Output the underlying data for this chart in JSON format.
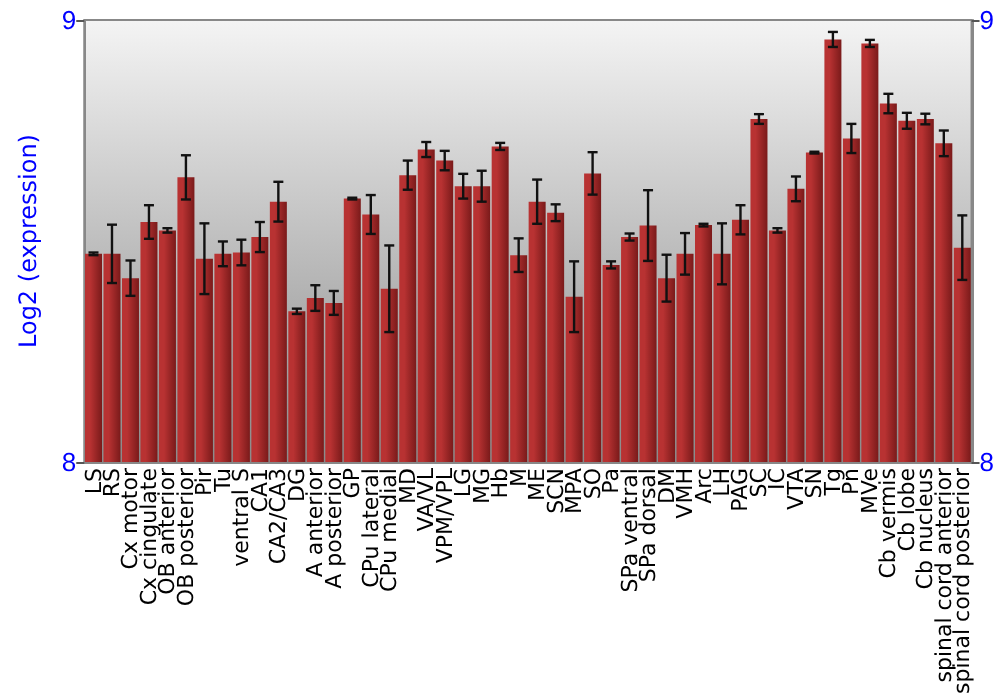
{
  "chart_data": {
    "type": "bar",
    "ylabel": "Log2 (expression)",
    "categories": [
      "LS",
      "RS",
      "Cx motor",
      "Cx cingulate",
      "OB anterior",
      "OB posterior",
      "Pir",
      "Tu",
      "ventral S",
      "CA1",
      "CA2/CA3",
      "DG",
      "A anterior",
      "A posterior",
      "GP",
      "CPu lateral",
      "CPu medial",
      "MD",
      "VA/VL",
      "VPM/VPL",
      "LG",
      "MG",
      "Hb",
      "M",
      "ME",
      "SCN",
      "MPA",
      "SO",
      "Pa",
      "SPa ventral",
      "SPa dorsal",
      "DM",
      "VMH",
      "Arc",
      "LH",
      "PAG",
      "SC",
      "IC",
      "VTA",
      "SN",
      "Tg",
      "Pn",
      "MVe",
      "Cb vermis",
      "Cb lobe",
      "Cb nucleus",
      "spinal cord anterior",
      "spinal cord posterior"
    ],
    "values": [
      8.471,
      8.471,
      8.416,
      8.543,
      8.524,
      8.644,
      8.46,
      8.471,
      8.474,
      8.509,
      8.589,
      8.341,
      8.371,
      8.36,
      8.596,
      8.56,
      8.392,
      8.649,
      8.707,
      8.682,
      8.624,
      8.624,
      8.714,
      8.468,
      8.589,
      8.564,
      8.374,
      8.653,
      8.446,
      8.509,
      8.535,
      8.416,
      8.471,
      8.536,
      8.471,
      8.548,
      8.776,
      8.524,
      8.618,
      8.7,
      8.956,
      8.732,
      8.947,
      8.811,
      8.772,
      8.776,
      8.721,
      8.485
    ],
    "errors": [
      0.003,
      0.066,
      0.04,
      0.038,
      0.005,
      0.05,
      0.08,
      0.028,
      0.029,
      0.034,
      0.045,
      0.006,
      0.029,
      0.027,
      0.002,
      0.044,
      0.098,
      0.033,
      0.017,
      0.022,
      0.028,
      0.035,
      0.008,
      0.038,
      0.05,
      0.019,
      0.08,
      0.048,
      0.008,
      0.008,
      0.08,
      0.053,
      0.047,
      0.003,
      0.069,
      0.033,
      0.011,
      0.005,
      0.028,
      0.002,
      0.017,
      0.033,
      0.008,
      0.022,
      0.018,
      0.012,
      0.029,
      0.073
    ],
    "color": "#b83232",
    "ylim": [
      8,
      9
    ],
    "yticks": [
      8,
      9
    ],
    "y2lim": [
      8,
      9
    ],
    "y2ticks": [
      8,
      9
    ],
    "grid": false
  }
}
